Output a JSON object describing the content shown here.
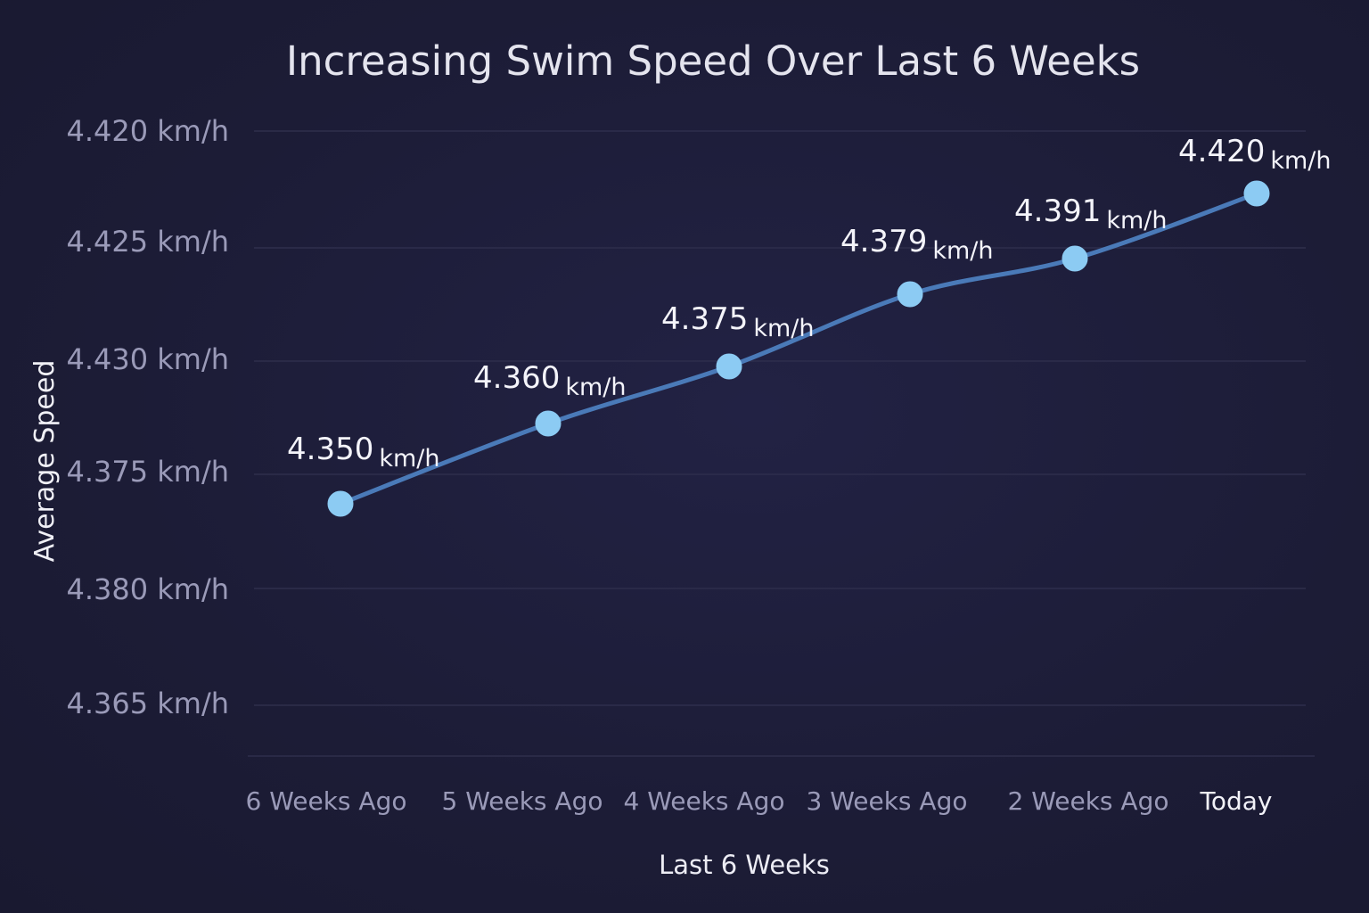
{
  "chart_data": {
    "type": "line",
    "title": "Increasing Swim Speed Over Last 6 Weeks",
    "xlabel": "Last 6 Weeks",
    "ylabel": "Average Speed",
    "categories": [
      "6 Weeks Ago",
      "5 Weeks Ago",
      "4 Weeks Ago",
      "3 Weeks Ago",
      "2 Weeks Ago",
      "Today"
    ],
    "series": [
      {
        "name": "Average Speed",
        "values": [
          4.35,
          4.36,
          4.375,
          4.379,
          4.391,
          4.42
        ],
        "value_labels": [
          "4.350",
          "4.360",
          "4.375",
          "4.379",
          "4.391",
          "4.420"
        ],
        "unit": "km/h"
      }
    ],
    "y_tick_labels": [
      "4.420 km/h",
      "4.425 km/h",
      "4.430 km/h",
      "4.375 km/h",
      "4.380 km/h",
      "4.365 km/h"
    ],
    "grid": true,
    "legend": "none",
    "colors": {
      "background": "#1c1c36",
      "line": "#4a7ab8",
      "point": "#8ccbf3",
      "grid": "#2e2e4c"
    }
  }
}
